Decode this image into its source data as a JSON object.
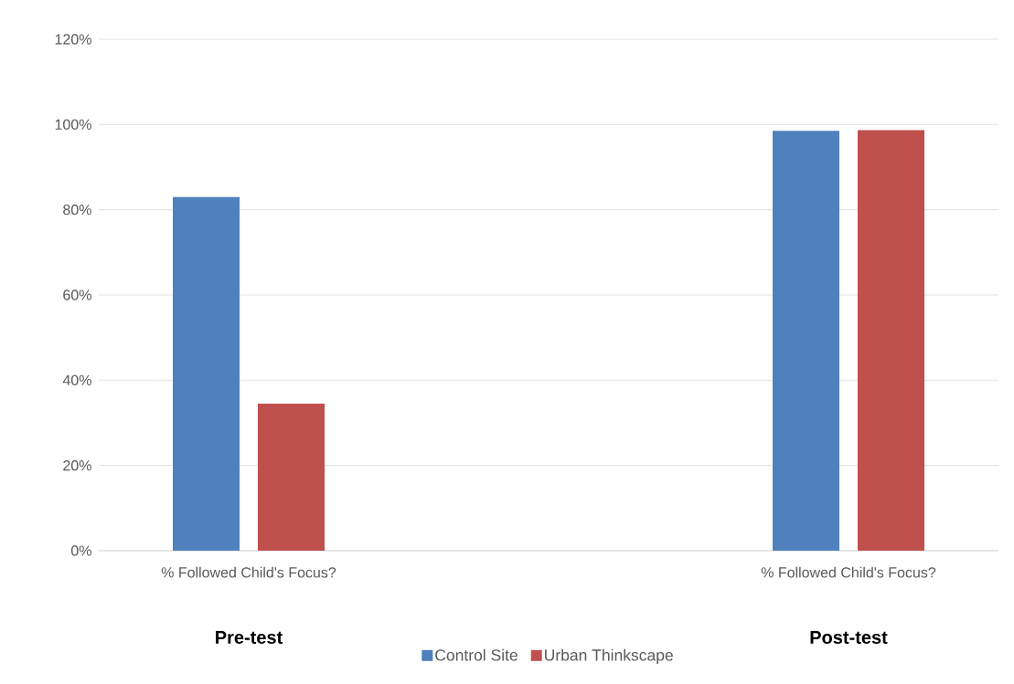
{
  "chart_data": {
    "type": "bar",
    "categories": [
      "% Followed Child's Focus?",
      "% Followed Child's Focus?"
    ],
    "series": [
      {
        "name": "Control Site",
        "color": "#4f81bd",
        "values": [
          83,
          98.5
        ]
      },
      {
        "name": "Urban Thinkscape",
        "color": "#c0504d",
        "values": [
          34.5,
          98.7
        ]
      }
    ],
    "ylim": [
      0,
      120
    ],
    "yticks": [
      {
        "value": 0,
        "label": "0%"
      },
      {
        "value": 20,
        "label": "20%"
      },
      {
        "value": 40,
        "label": "40%"
      },
      {
        "value": 60,
        "label": "60%"
      },
      {
        "value": 80,
        "label": "80%"
      },
      {
        "value": 100,
        "label": "100%"
      },
      {
        "value": 120,
        "label": "120%"
      }
    ],
    "grid": "y",
    "legend": "bottom",
    "annotations": [
      "Pre-test",
      "Post-test"
    ]
  }
}
